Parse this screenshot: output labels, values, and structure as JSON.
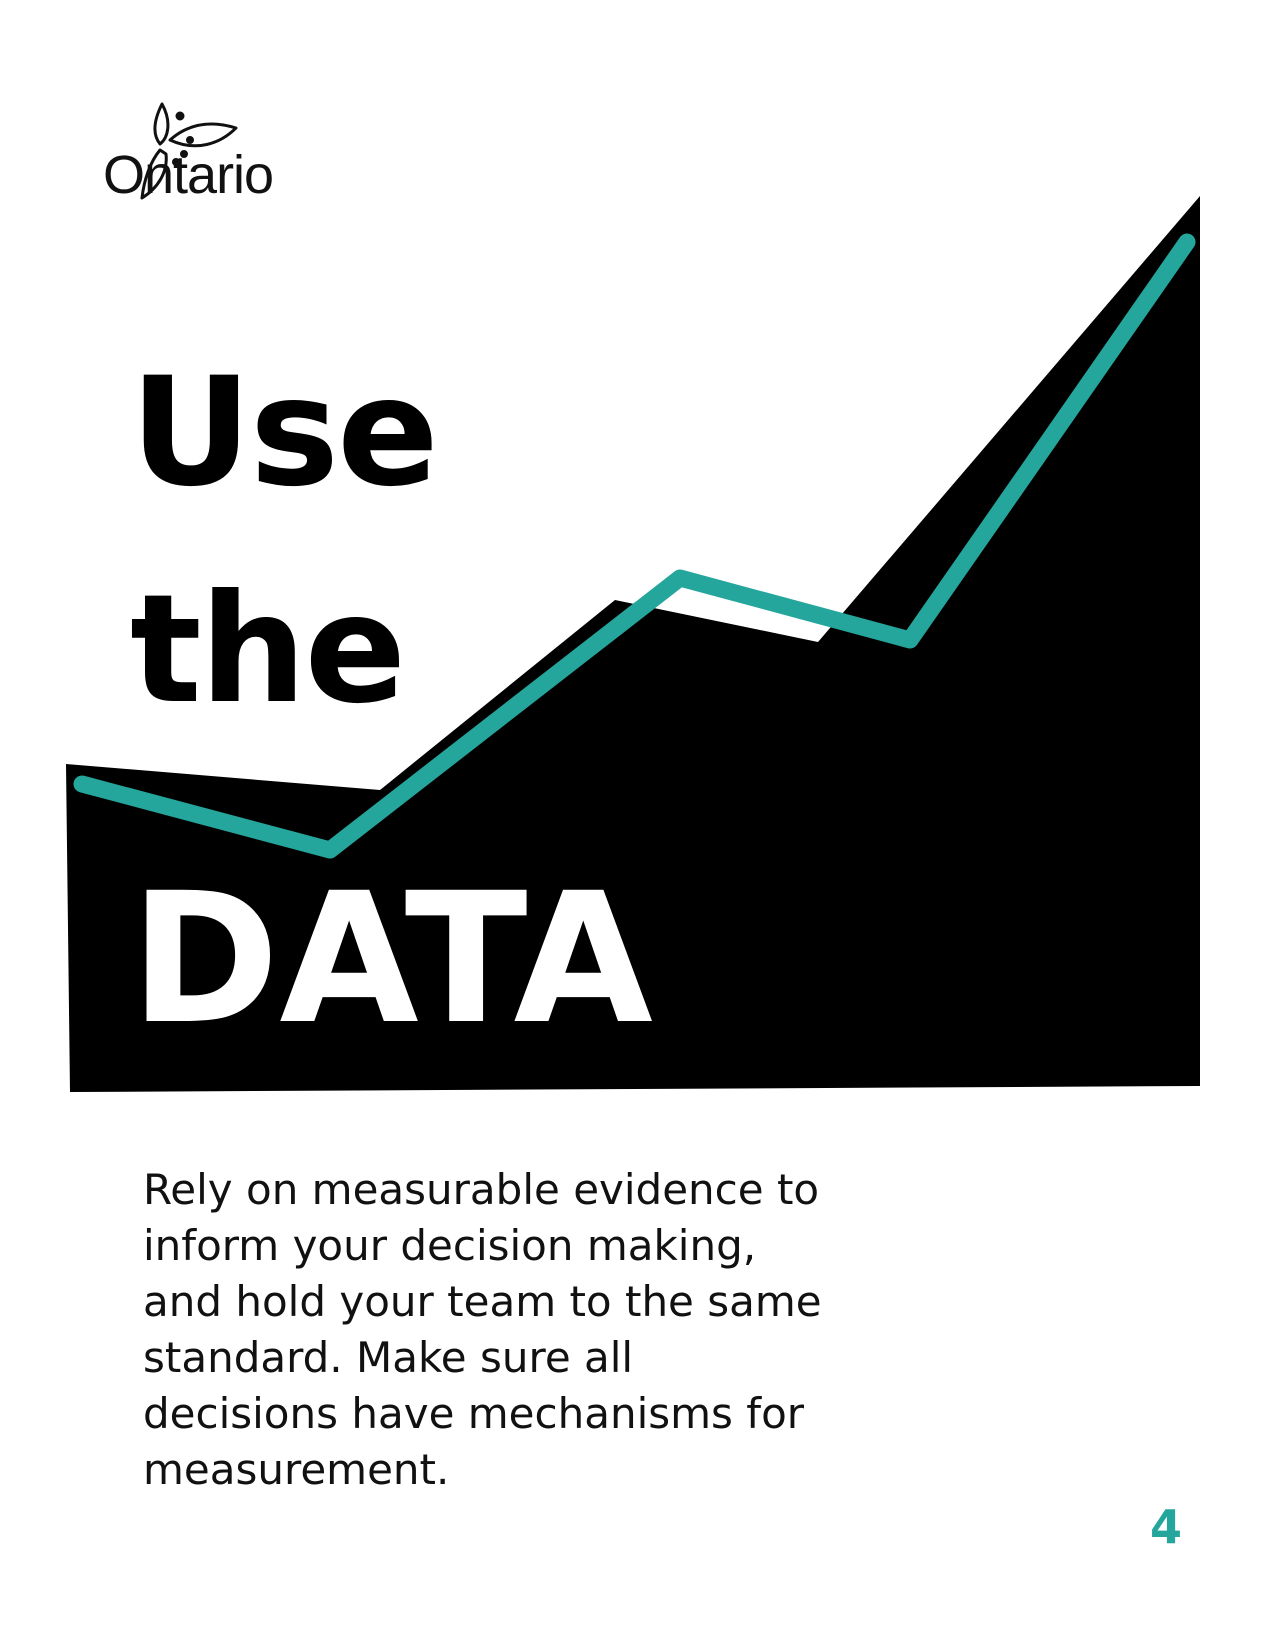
{
  "brand": {
    "logo_icon": "trillium-icon",
    "name": "Ontario"
  },
  "title": {
    "line1": "Use",
    "line2": "the",
    "line3": "DATA"
  },
  "body": "Rely on measurable evidence to inform your decision making, and hold your team to the same standard. Make sure all decisions have mechanisms for measurement.",
  "page_number": "4",
  "colors": {
    "accent": "#24a69c",
    "ink": "#000000",
    "background": "#ffffff"
  }
}
